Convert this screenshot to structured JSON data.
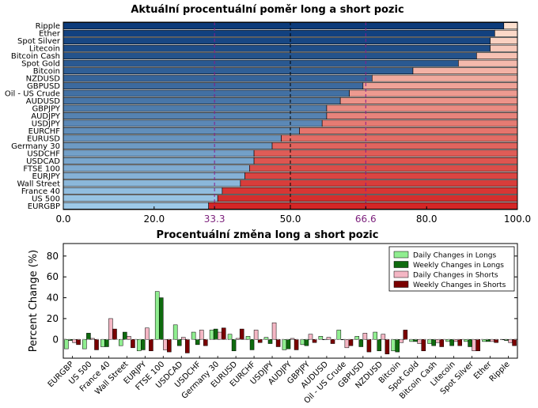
{
  "chart_data": [
    {
      "type": "bar",
      "orientation": "horizontal",
      "stacked": true,
      "title": "Aktuální procentuální poměr long a short pozic",
      "categories": [
        "Ripple",
        "Ether",
        "Spot Silver",
        "Litecoin",
        "Bitcoin Cash",
        "Spot Gold",
        "Bitcoin",
        "NZDUSD",
        "GBPUSD",
        "Oil - US Crude",
        "AUDUSD",
        "GBPJPY",
        "AUDJPY",
        "USDJPY",
        "EURCHF",
        "EURUSD",
        "Germany 30",
        "USDCHF",
        "USDCAD",
        "FTSE 100",
        "EURJPY",
        "Wall Street",
        "France 40",
        "US 500",
        "EURGBP"
      ],
      "series": [
        {
          "name": "",
          "values": [
            97,
            95,
            94,
            94,
            91,
            87,
            77,
            68,
            66,
            63,
            61,
            58,
            58,
            57,
            52,
            48,
            46,
            42,
            42,
            41,
            40,
            39,
            35,
            34,
            32
          ]
        },
        {
          "name": "",
          "values": [
            3,
            5,
            6,
            6,
            9,
            13,
            23,
            32,
            34,
            37,
            39,
            42,
            42,
            43,
            48,
            52,
            54,
            58,
            58,
            59,
            60,
            61,
            65,
            66,
            68
          ]
        }
      ],
      "xlim": [
        0,
        100
      ],
      "xticks": [
        "0.0",
        "20.0",
        "33.3",
        "50.0",
        "66.6",
        "80.0",
        "100.0"
      ],
      "reference_lines": [
        33.3,
        50,
        66.6
      ],
      "colors": {
        "long_dark": "#0c3b7a",
        "long_light": "#9dc9e8",
        "short_light": "#fde0cf",
        "short_dark": "#d32626",
        "reference": "#8b1a8b"
      }
    },
    {
      "type": "bar",
      "title": "Procentuální změna long a short pozic",
      "ylabel": "Percent Change (%)",
      "ylim": [
        -18,
        92
      ],
      "yticks": [
        "0",
        "20",
        "40",
        "60",
        "80"
      ],
      "categories": [
        "EURGBP",
        "US 500",
        "France 40",
        "Wall Street",
        "EURJPY",
        "FTSE 100",
        "USDCAD",
        "USDCHF",
        "Germany 30",
        "EURUSD",
        "EURCHF",
        "USDJPY",
        "AUDJPY",
        "GBPJPY",
        "AUDUSD",
        "Oil - US Crude",
        "GBPUSD",
        "NZDUSD",
        "Bitcoin",
        "Spot Gold",
        "Bitcoin Cash",
        "Litecoin",
        "Spot Silver",
        "Ether",
        "Ripple"
      ],
      "series": [
        {
          "name": "Daily Changes in Longs",
          "color": "#90ee90",
          "values": [
            -9,
            -9,
            -7,
            -6,
            -11,
            46,
            14,
            7,
            9,
            5,
            3,
            2,
            -10,
            -5,
            3,
            9,
            3,
            7,
            -11,
            -2,
            -4,
            -2,
            -2,
            -2,
            0
          ]
        },
        {
          "name": "Weekly Changes in Longs",
          "color": "#0f6b0f",
          "values": [
            -1,
            6,
            -7,
            7,
            -10,
            40,
            -6,
            -5,
            10,
            -11,
            -10,
            -4,
            -9,
            -6,
            0,
            0,
            -7,
            -11,
            -12,
            -2,
            -6,
            -6,
            -7,
            -2,
            -1
          ]
        },
        {
          "name": "Daily Changes in Shorts",
          "color": "#f4b6c4",
          "values": [
            -3,
            1,
            20,
            3,
            11,
            -10,
            2,
            9,
            7,
            1,
            9,
            16,
            1,
            5,
            2,
            -8,
            6,
            5,
            -3,
            -4,
            -3,
            -2,
            -11,
            -2,
            -3
          ]
        },
        {
          "name": "Weekly Changes in Shorts",
          "color": "#7a0000",
          "values": [
            -5,
            -10,
            10,
            -8,
            -11,
            -12,
            -13,
            -6,
            11,
            10,
            -3,
            -7,
            -10,
            -3,
            -4,
            -6,
            -12,
            -14,
            9,
            -11,
            -7,
            -6,
            -11,
            -3,
            -6
          ]
        }
      ]
    }
  ]
}
